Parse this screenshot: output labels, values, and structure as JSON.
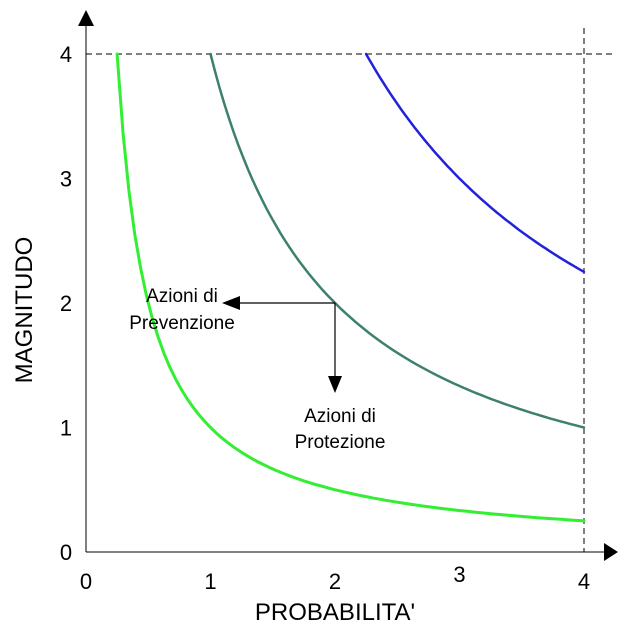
{
  "chart_data": {
    "type": "line",
    "xlabel": "PROBABILITA'",
    "ylabel": "MAGNITUDO",
    "xlim": [
      0,
      4
    ],
    "ylim": [
      0,
      4
    ],
    "x_ticks": [
      "0",
      "1",
      "2",
      "3",
      "4"
    ],
    "y_ticks": [
      "0",
      "1",
      "2",
      "3",
      "4"
    ],
    "grid": false,
    "series": [
      {
        "color": "#33ee33",
        "k": 1,
        "x_range": [
          0.25,
          4
        ]
      },
      {
        "color": "#3d8070",
        "k": 4,
        "x_range": [
          1,
          4
        ]
      },
      {
        "color": "#2222dd",
        "k": 9,
        "x_range": [
          2.25,
          4
        ]
      }
    ],
    "reference_point": {
      "x": 2,
      "y": 2
    },
    "annotations": [
      {
        "lines": [
          "Azioni di",
          "Prevenzione"
        ],
        "direction": "left"
      },
      {
        "lines": [
          "Azioni di",
          "Protezione"
        ],
        "direction": "down"
      }
    ]
  }
}
